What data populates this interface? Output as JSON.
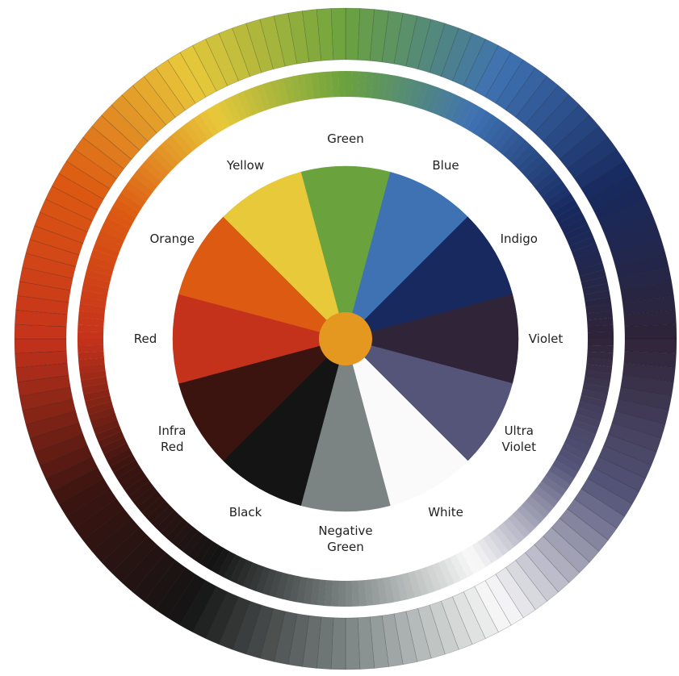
{
  "wheel": {
    "center_color": "#e4981f",
    "segments": [
      {
        "label": [
          "Green"
        ],
        "color": "#6aa23e"
      },
      {
        "label": [
          "Blue"
        ],
        "color": "#3f72b3"
      },
      {
        "label": [
          "Indigo"
        ],
        "color": "#17295e"
      },
      {
        "label": [
          "Violet"
        ],
        "color": "#2f2438"
      },
      {
        "label": [
          "Ultra",
          "Violet"
        ],
        "color": "#55557a"
      },
      {
        "label": [
          "White"
        ],
        "color": "#fafafa"
      },
      {
        "label": [
          "Negative",
          "Green"
        ],
        "color": "#7b8483"
      },
      {
        "label": [
          "Black"
        ],
        "color": "#141414"
      },
      {
        "label": [
          "Infra",
          "Red"
        ],
        "color": "#3b1410"
      },
      {
        "label": [
          "Red"
        ],
        "color": "#c5321b"
      },
      {
        "label": [
          "Orange"
        ],
        "color": "#dd5a12"
      },
      {
        "label": [
          "Yellow"
        ],
        "color": "#e8c93a"
      }
    ]
  }
}
